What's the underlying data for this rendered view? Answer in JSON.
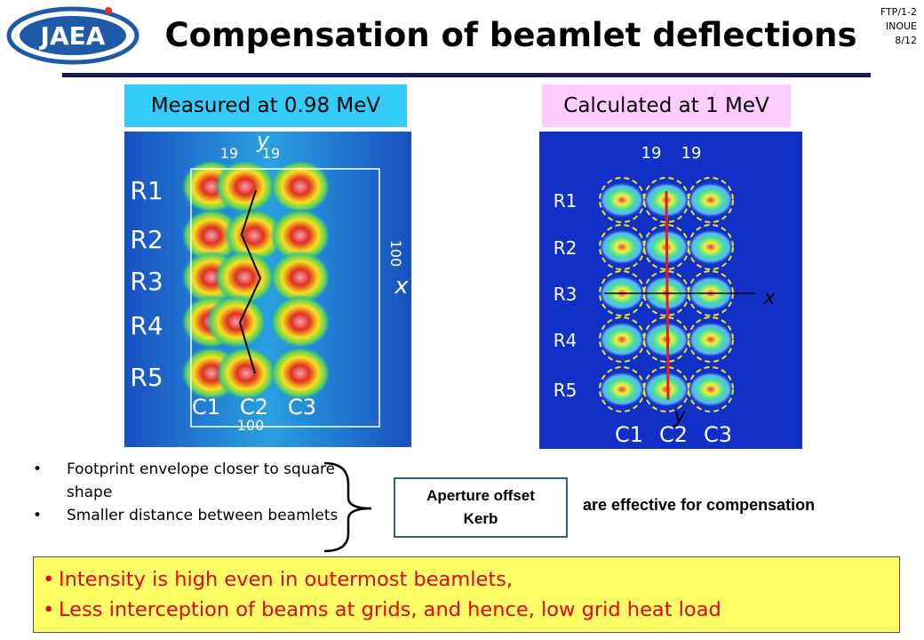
{
  "header": {
    "logo": "JAEA",
    "title": "Compensation of beamlet deflections",
    "slide_id": [
      "FTP/1-2",
      "INOUE",
      "8/12"
    ]
  },
  "left_panel": {
    "label": "Measured at 0.98 MeV",
    "image_labels": {
      "pitch": [
        "19",
        "19"
      ],
      "axis_y": "y",
      "axis_x": "x",
      "height": "100",
      "width": "100",
      "rows": [
        "R1",
        "R2",
        "R3",
        "R4",
        "R5"
      ],
      "columns": [
        "C1",
        "C2",
        "C3"
      ]
    }
  },
  "right_panel": {
    "label": "Calculated at 1 MeV",
    "image_labels": {
      "pitch": [
        "19",
        "19"
      ],
      "axis_x": "x",
      "axis_y": "y",
      "rows": [
        "R1",
        "R2",
        "R3",
        "R4",
        "R5"
      ],
      "columns": [
        "C1",
        "C2",
        "C3"
      ]
    }
  },
  "bullets": [
    "Footprint envelope closer to square shape",
    "Smaller distance between beamlets"
  ],
  "causes": [
    "Aperture offset",
    "Kerb"
  ],
  "conclusion": "are effective for compensation",
  "highlights": [
    "Intensity is high even in outermost beamlets,",
    "Less interception of beams at grids, and hence, low grid heat load"
  ]
}
